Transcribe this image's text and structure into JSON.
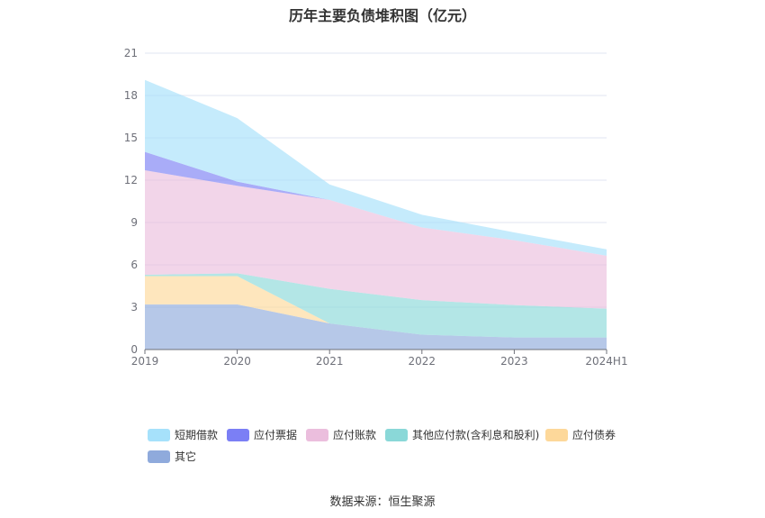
{
  "chart_data": {
    "type": "area",
    "stacked": true,
    "title": "历年主要负债堆积图（亿元）",
    "categories": [
      "2019",
      "2020",
      "2021",
      "2022",
      "2023",
      "2024H1"
    ],
    "y_ticks": [
      "0",
      "3",
      "6",
      "9",
      "12",
      "15",
      "18",
      "21"
    ],
    "ylim": [
      0,
      21
    ],
    "grid": true,
    "legend_position": "bottom",
    "series": [
      {
        "name": "其它",
        "color": "#8faadc",
        "values": [
          3.2,
          3.2,
          1.85,
          1.05,
          0.85,
          0.85
        ]
      },
      {
        "name": "应付债券",
        "color": "#fdd89a",
        "values": [
          2.0,
          2.0,
          0.0,
          0.0,
          0.0,
          0.0
        ]
      },
      {
        "name": "其他应付款(含利息和股利)",
        "color": "#8ad8d8",
        "values": [
          0.1,
          0.2,
          2.45,
          2.45,
          2.3,
          2.05
        ]
      },
      {
        "name": "应付账款",
        "color": "#ebbedd",
        "values": [
          7.4,
          6.2,
          6.3,
          5.15,
          4.6,
          3.75
        ]
      },
      {
        "name": "应付票据",
        "color": "#7b7ff5",
        "values": [
          1.3,
          0.3,
          0.0,
          0.0,
          0.0,
          0.0
        ]
      },
      {
        "name": "短期借款",
        "color": "#a6e1fb",
        "values": [
          5.1,
          4.5,
          1.1,
          0.9,
          0.55,
          0.45
        ]
      }
    ],
    "legend_order": [
      "短期借款",
      "应付票据",
      "应付账款",
      "其他应付款(含利息和股利)",
      "应付债券",
      "其它"
    ]
  },
  "footer": {
    "source": "数据来源：恒生聚源"
  }
}
